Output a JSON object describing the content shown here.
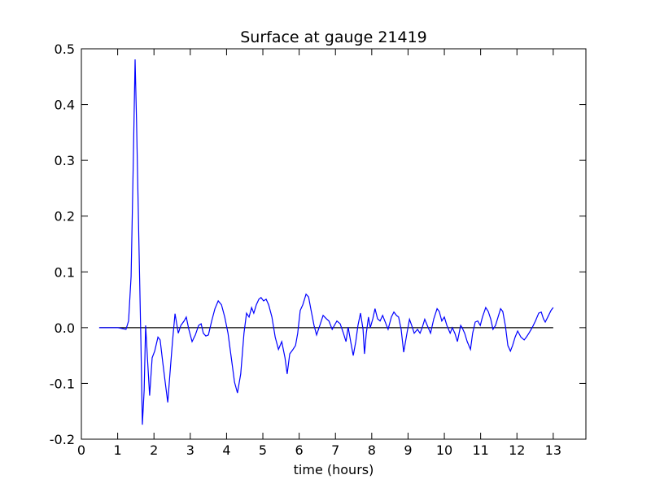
{
  "chart_data": {
    "type": "line",
    "title": "Surface at gauge 21419",
    "xlabel": "time (hours)",
    "xlim": [
      0,
      13.9
    ],
    "ylim": [
      -0.2,
      0.5
    ],
    "xticks": [
      0,
      1,
      2,
      3,
      4,
      5,
      6,
      7,
      8,
      9,
      10,
      11,
      12,
      13
    ],
    "yticks": [
      -0.2,
      -0.1,
      {
        "value": 0,
        "label": "0.0"
      },
      0.1,
      0.2,
      0.3,
      0.4,
      0.5
    ],
    "grid": false,
    "series": [
      {
        "color": "#000000",
        "x": [
          0.5,
          13.0
        ],
        "values": [
          0,
          0
        ]
      },
      {
        "color": "#0000ff",
        "x": [
          0.49,
          1.01,
          1.23,
          1.3,
          1.37,
          1.43,
          1.48,
          1.52,
          1.59,
          1.64,
          1.68,
          1.73,
          1.77,
          1.82,
          1.88,
          1.95,
          2.02,
          2.11,
          2.17,
          2.24,
          2.31,
          2.38,
          2.44,
          2.51,
          2.58,
          2.67,
          2.74,
          2.83,
          2.89,
          2.96,
          3.05,
          3.14,
          3.23,
          3.3,
          3.36,
          3.43,
          3.5,
          3.59,
          3.68,
          3.77,
          3.86,
          3.95,
          4.04,
          4.13,
          4.22,
          4.3,
          4.39,
          4.48,
          4.55,
          4.62,
          4.69,
          4.75,
          4.82,
          4.89,
          4.95,
          5.02,
          5.09,
          5.16,
          5.25,
          5.34,
          5.43,
          5.52,
          5.61,
          5.67,
          5.74,
          5.83,
          5.9,
          5.96,
          6.03,
          6.1,
          6.19,
          6.26,
          6.32,
          6.41,
          6.48,
          6.57,
          6.66,
          6.75,
          6.82,
          6.91,
          6.97,
          7.04,
          7.13,
          7.22,
          7.29,
          7.35,
          7.42,
          7.49,
          7.56,
          7.62,
          7.69,
          7.76,
          7.8,
          7.85,
          7.91,
          7.96,
          8.03,
          8.09,
          8.16,
          8.23,
          8.3,
          8.39,
          8.45,
          8.54,
          8.61,
          8.68,
          8.74,
          8.81,
          8.88,
          8.97,
          9.04,
          9.1,
          9.17,
          9.26,
          9.33,
          9.39,
          9.46,
          9.53,
          9.62,
          9.71,
          9.8,
          9.86,
          9.93,
          10.0,
          10.07,
          10.16,
          10.22,
          10.29,
          10.36,
          10.45,
          10.49,
          10.56,
          10.63,
          10.72,
          10.78,
          10.85,
          10.92,
          10.99,
          11.05,
          11.14,
          11.21,
          11.28,
          11.34,
          11.41,
          11.48,
          11.55,
          11.61,
          11.68,
          11.75,
          11.82,
          11.88,
          11.95,
          12.02,
          12.11,
          12.2,
          12.26,
          12.33,
          12.42,
          12.51,
          12.6,
          12.67,
          12.73,
          12.78,
          12.85,
          12.94,
          13.0
        ],
        "values": [
          0,
          0,
          -0.003,
          0.012,
          0.092,
          0.296,
          0.481,
          0.369,
          0.136,
          -0.025,
          -0.174,
          -0.112,
          0.004,
          -0.054,
          -0.122,
          -0.054,
          -0.042,
          -0.017,
          -0.022,
          -0.061,
          -0.098,
          -0.134,
          -0.083,
          -0.025,
          0.025,
          -0.01,
          0.004,
          0.012,
          0.019,
          -0.003,
          -0.025,
          -0.013,
          0.004,
          0.007,
          -0.01,
          -0.015,
          -0.013,
          0.012,
          0.034,
          0.048,
          0.041,
          0.019,
          -0.01,
          -0.054,
          -0.098,
          -0.117,
          -0.083,
          -0.01,
          0.026,
          0.019,
          0.036,
          0.026,
          0.041,
          0.051,
          0.054,
          0.048,
          0.051,
          0.041,
          0.019,
          -0.017,
          -0.039,
          -0.025,
          -0.054,
          -0.083,
          -0.047,
          -0.039,
          -0.032,
          -0.01,
          0.031,
          0.041,
          0.06,
          0.055,
          0.034,
          0.004,
          -0.013,
          0.004,
          0.022,
          0.016,
          0.012,
          -0.003,
          0.004,
          0.012,
          0.007,
          -0.01,
          -0.025,
          0.001,
          -0.025,
          -0.05,
          -0.025,
          0.004,
          0.026,
          -0.003,
          -0.047,
          -0.01,
          0.019,
          0,
          0.016,
          0.034,
          0.016,
          0.012,
          0.022,
          0.007,
          -0.003,
          0.019,
          0.028,
          0.022,
          0.019,
          -0.003,
          -0.044,
          -0.01,
          0.015,
          0.004,
          -0.01,
          -0.003,
          -0.01,
          0,
          0.015,
          0.004,
          -0.01,
          0.016,
          0.034,
          0.029,
          0.012,
          0.019,
          0.004,
          -0.01,
          0,
          -0.01,
          -0.025,
          0.004,
          0,
          -0.01,
          -0.025,
          -0.039,
          -0.01,
          0.01,
          0.012,
          0.004,
          0.019,
          0.036,
          0.029,
          0.015,
          -0.003,
          0.004,
          0.019,
          0.034,
          0.029,
          0.004,
          -0.032,
          -0.042,
          -0.032,
          -0.017,
          -0.006,
          -0.017,
          -0.022,
          -0.017,
          -0.01,
          0,
          0.012,
          0.026,
          0.028,
          0.016,
          0.01,
          0.019,
          0.031,
          0.036
        ]
      }
    ]
  }
}
